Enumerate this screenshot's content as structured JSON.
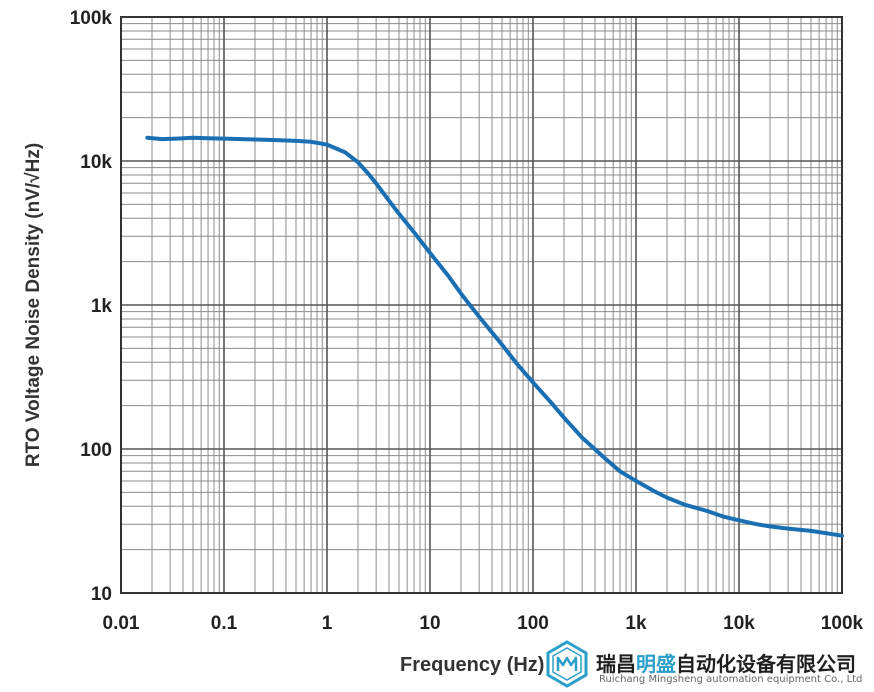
{
  "chart_data": {
    "type": "line",
    "title": "",
    "xlabel": "Frequency (Hz)",
    "ylabel": "RTO Voltage Noise Density (nV/√Hz)",
    "x_scale": "log",
    "y_scale": "log",
    "xlim": [
      0.01,
      100000
    ],
    "ylim": [
      10,
      100000
    ],
    "x_ticks": [
      {
        "value": 0.01,
        "label": "0.01"
      },
      {
        "value": 0.1,
        "label": "0.1"
      },
      {
        "value": 1,
        "label": "1"
      },
      {
        "value": 10,
        "label": "10"
      },
      {
        "value": 100,
        "label": "100"
      },
      {
        "value": 1000,
        "label": "1k"
      },
      {
        "value": 10000,
        "label": "10k"
      },
      {
        "value": 100000,
        "label": "100k"
      }
    ],
    "y_ticks": [
      {
        "value": 10,
        "label": "10"
      },
      {
        "value": 100,
        "label": "100"
      },
      {
        "value": 1000,
        "label": "1k"
      },
      {
        "value": 10000,
        "label": "10k"
      },
      {
        "value": 100000,
        "label": "100k"
      }
    ],
    "grid": true,
    "series": [
      {
        "color": "#1a6fb3",
        "x": [
          0.018,
          0.025,
          0.035,
          0.05,
          0.07,
          0.1,
          0.15,
          0.2,
          0.3,
          0.5,
          0.7,
          1,
          1.5,
          2,
          2.5,
          3,
          4,
          5,
          7,
          10,
          15,
          20,
          30,
          50,
          70,
          100,
          150,
          200,
          300,
          500,
          700,
          1000,
          1500,
          2000,
          3000,
          5000,
          7000,
          10000,
          15000,
          20000,
          30000,
          50000,
          70000,
          100000
        ],
        "y": [
          14500,
          14200,
          14300,
          14500,
          14400,
          14300,
          14200,
          14100,
          14000,
          13800,
          13600,
          13000,
          11500,
          9800,
          8200,
          7000,
          5300,
          4300,
          3200,
          2300,
          1600,
          1200,
          830,
          530,
          390,
          290,
          210,
          165,
          120,
          86,
          70,
          60,
          51,
          46,
          41,
          37,
          34,
          32,
          30,
          29,
          28,
          27,
          26,
          25
        ]
      }
    ]
  },
  "watermark": {
    "company_cn_part1": "瑞昌",
    "company_cn_highlight": "明盛",
    "company_cn_part2": "自动化设备有限公司",
    "company_en": "Ruichang Mingsheng automation equipment Co., Ltd",
    "highlight_color": "#2aa0c8"
  }
}
